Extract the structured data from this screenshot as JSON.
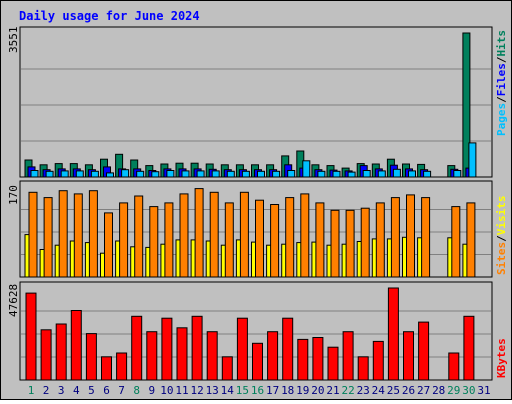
{
  "title": "Daily usage for June 2024",
  "colors": {
    "hits": "#00805c",
    "files": "#0000ff",
    "pages": "#00c0ff",
    "visits": "#ff8000",
    "sites": "#ffff00",
    "kbytes": "#ff0000",
    "weekend_label": "#00805c",
    "weekday_label": "#000080",
    "title": "#0000ff"
  },
  "legends": {
    "top": [
      "Pages",
      "/",
      "Files",
      "/",
      "Hits"
    ],
    "mid": [
      "Sites",
      "/",
      "Visits"
    ],
    "bot": [
      "KBytes"
    ]
  },
  "chart_data": {
    "type": "bar",
    "x_label_days": [
      "1",
      "2",
      "3",
      "4",
      "5",
      "6",
      "7",
      "8",
      "9",
      "10",
      "11",
      "12",
      "13",
      "14",
      "15",
      "16",
      "17",
      "18",
      "19",
      "20",
      "21",
      "22",
      "23",
      "24",
      "25",
      "26",
      "27",
      "28",
      "29",
      "30",
      "31"
    ],
    "weekend_days": [
      1,
      8,
      15,
      16,
      22,
      29,
      30
    ],
    "panels": [
      {
        "name": "hits_files_pages",
        "ymax_label": "3551",
        "ymax": 3551,
        "series": [
          {
            "name": "Hits",
            "values": [
              420,
              300,
              330,
              330,
              300,
              440,
              560,
              420,
              280,
              320,
              340,
              340,
              320,
              300,
              300,
              300,
              300,
              520,
              640,
              300,
              280,
              220,
              330,
              320,
              440,
              320,
              310,
              0,
              280,
              3551,
              0
            ]
          },
          {
            "name": "Files",
            "values": [
              250,
              180,
              200,
              200,
              180,
              250,
              200,
              200,
              160,
              200,
              200,
              200,
              190,
              180,
              180,
              180,
              180,
              300,
              220,
              180,
              170,
              150,
              280,
              200,
              290,
              200,
              180,
              0,
              190,
              220,
              0
            ]
          },
          {
            "name": "Pages",
            "values": [
              160,
              140,
              150,
              150,
              140,
              100,
              180,
              140,
              130,
              160,
              150,
              150,
              150,
              140,
              140,
              140,
              140,
              160,
              400,
              140,
              140,
              120,
              160,
              150,
              190,
              150,
              140,
              0,
              160,
              840,
              0
            ]
          }
        ]
      },
      {
        "name": "visits_sites",
        "ymax_label": "170",
        "ymax": 170,
        "series": [
          {
            "name": "Visits",
            "values": [
              160,
              150,
              163,
              157,
              163,
              121,
              140,
              153,
              133,
              140,
              157,
              167,
              160,
              140,
              160,
              145,
              137,
              150,
              157,
              140,
              126,
              126,
              130,
              140,
              150,
              155,
              150,
              0,
              133,
              140,
              0
            ]
          },
          {
            "name": "Sites",
            "values": [
              80,
              52,
              60,
              68,
              65,
              45,
              68,
              57,
              56,
              62,
              70,
              70,
              68,
              60,
              70,
              66,
              60,
              62,
              65,
              66,
              60,
              62,
              67,
              72,
              72,
              75,
              74,
              0,
              74,
              62,
              0
            ]
          }
        ]
      },
      {
        "name": "kbytes",
        "ymax_label": "47628",
        "ymax": 47628,
        "series": [
          {
            "name": "KBytes",
            "values": [
              45000,
              26000,
              29000,
              36000,
              24000,
              12000,
              14000,
              33000,
              25000,
              32000,
              27000,
              33000,
              25000,
              12000,
              32000,
              19000,
              25000,
              32000,
              21000,
              22000,
              17000,
              25000,
              12000,
              20000,
              47628,
              25000,
              30000,
              0,
              14000,
              33000,
              0
            ]
          }
        ]
      }
    ]
  }
}
